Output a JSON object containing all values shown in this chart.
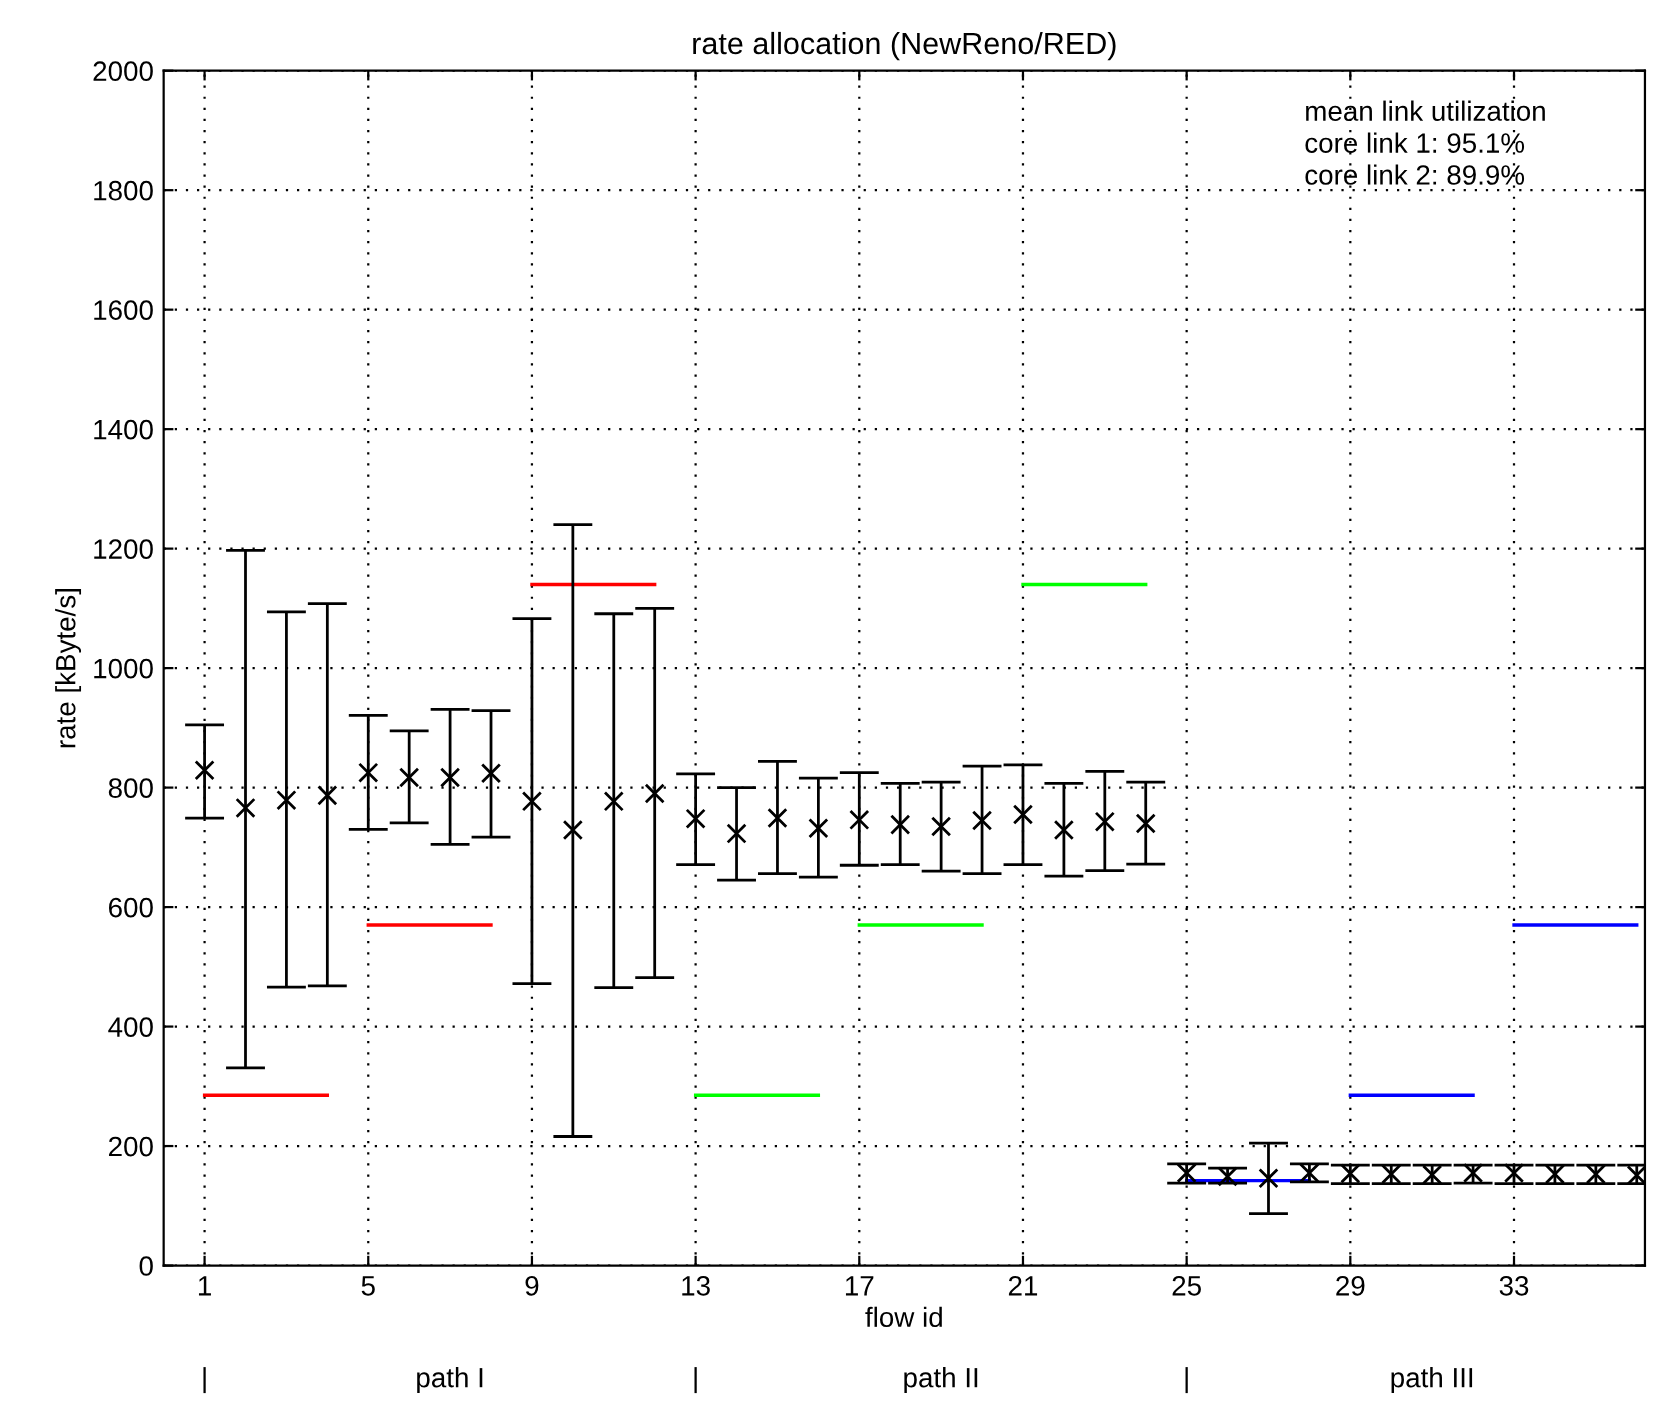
{
  "chart_data": {
    "type": "scatter",
    "title": "rate allocation (NewReno/RED)",
    "xlabel": "flow id",
    "ylabel": "rate [kByte/s]",
    "x": [
      1,
      2,
      3,
      4,
      5,
      6,
      7,
      8,
      9,
      10,
      11,
      12,
      13,
      14,
      15,
      16,
      17,
      18,
      19,
      20,
      21,
      22,
      23,
      24,
      25,
      26,
      27,
      28,
      29,
      30,
      31,
      32,
      33,
      34,
      35,
      36
    ],
    "series": [
      {
        "color": "#000000",
        "marker": "cross",
        "values": [
          829,
          766,
          779,
          787,
          825,
          817,
          817,
          824,
          777,
          729,
          777,
          790,
          748,
          723,
          749,
          732,
          746,
          738,
          735,
          745,
          755,
          729,
          743,
          740,
          155,
          149,
          146,
          155,
          154,
          153,
          152,
          155,
          155,
          153,
          153,
          151
        ],
        "errors": [
          [
            749,
            905
          ],
          [
            331,
            1197
          ],
          [
            466,
            1094
          ],
          [
            468,
            1108
          ],
          [
            730,
            921
          ],
          [
            741,
            895
          ],
          [
            705,
            931
          ],
          [
            717,
            929
          ],
          [
            472,
            1083
          ],
          [
            216,
            1240
          ],
          [
            465,
            1091
          ],
          [
            482,
            1100
          ],
          [
            671,
            823
          ],
          [
            645,
            800
          ],
          [
            656,
            844
          ],
          [
            650,
            816
          ],
          [
            670,
            825
          ],
          [
            671,
            807
          ],
          [
            660,
            809
          ],
          [
            656,
            836
          ],
          [
            671,
            838
          ],
          [
            652,
            807
          ],
          [
            661,
            827
          ],
          [
            672,
            809
          ],
          [
            138,
            170
          ],
          [
            138,
            163
          ],
          [
            87,
            205
          ],
          [
            140,
            170
          ],
          [
            137,
            168
          ],
          [
            137,
            168
          ],
          [
            137,
            168
          ],
          [
            138,
            168
          ],
          [
            137,
            168
          ],
          [
            137,
            168
          ],
          [
            137,
            168
          ],
          [
            137,
            168
          ]
        ]
      },
      {
        "type": "line",
        "color": "#ff0000",
        "line_style": "solid",
        "x": [
          1,
          4
        ],
        "values": [
          285,
          285
        ]
      },
      {
        "type": "line",
        "color": "#ff0000",
        "line_style": "solid",
        "x": [
          5,
          8
        ],
        "values": [
          570,
          570
        ]
      },
      {
        "type": "line",
        "color": "#ff0000",
        "line_style": "solid",
        "x": [
          9,
          12
        ],
        "values": [
          1140,
          1140
        ]
      },
      {
        "type": "line",
        "color": "#00ff00",
        "line_style": "solid",
        "x": [
          13,
          16
        ],
        "values": [
          285,
          285
        ]
      },
      {
        "type": "line",
        "color": "#00ff00",
        "line_style": "solid",
        "x": [
          17,
          20
        ],
        "values": [
          570,
          570
        ]
      },
      {
        "type": "line",
        "color": "#00ff00",
        "line_style": "solid",
        "x": [
          21,
          24
        ],
        "values": [
          1140,
          1140
        ]
      },
      {
        "type": "line",
        "color": "#0000ff",
        "line_style": "solid",
        "x": [
          25,
          28
        ],
        "values": [
          142,
          142
        ]
      },
      {
        "type": "line",
        "color": "#0000ff",
        "line_style": "solid",
        "x": [
          29,
          32
        ],
        "values": [
          285,
          285
        ]
      },
      {
        "type": "line",
        "color": "#0000ff",
        "line_style": "solid",
        "x": [
          33,
          36
        ],
        "values": [
          570,
          570
        ]
      }
    ],
    "xlim": [
      0,
      36.2
    ],
    "xticks": [
      1,
      5,
      9,
      13,
      17,
      21,
      25,
      29,
      33
    ],
    "ylim": [
      0,
      2000
    ],
    "yticks": [
      0,
      200,
      400,
      600,
      800,
      1000,
      1200,
      1400,
      1600,
      1800,
      2000
    ],
    "grid": true,
    "annotations": [
      "mean link utilization\ncore link 1: 95.1%\ncore link 2: 89.9%",
      "|",
      "path I",
      "|",
      "path II",
      "|",
      "path III"
    ]
  }
}
